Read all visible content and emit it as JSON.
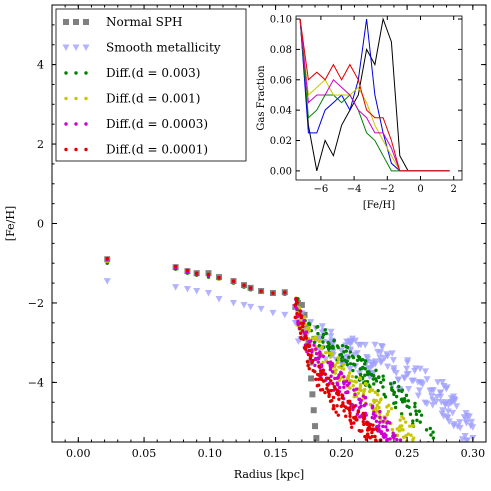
{
  "chart_data": [
    {
      "type": "scatter",
      "title": "",
      "xlabel": "Radius [kpc]",
      "ylabel": "[Fe/H]",
      "xlim": [
        -0.02,
        0.31
      ],
      "ylim": [
        -5.5,
        5.5
      ],
      "xticks": [
        "0.00",
        "0.05",
        "0.10",
        "0.15",
        "0.20",
        "0.25",
        "0.30"
      ],
      "xtick_values": [
        0.0,
        0.05,
        0.1,
        0.15,
        0.2,
        0.25,
        0.3
      ],
      "yticks": [
        "−4",
        "−2",
        "0",
        "2",
        "4"
      ],
      "ytick_values": [
        -4,
        -2,
        0,
        2,
        4
      ],
      "grid": false,
      "legend_position": "top-left",
      "series": [
        {
          "name": "Normal SPH",
          "marker": "square",
          "color": "#808080",
          "points": [
            [
              0.022,
              -0.9
            ],
            [
              0.074,
              -1.1
            ],
            [
              0.083,
              -1.2
            ],
            [
              0.09,
              -1.25
            ],
            [
              0.099,
              -1.25
            ],
            [
              0.107,
              -1.35
            ],
            [
              0.118,
              -1.45
            ],
            [
              0.126,
              -1.55
            ],
            [
              0.131,
              -1.62
            ],
            [
              0.139,
              -1.7
            ],
            [
              0.148,
              -1.75
            ],
            [
              0.157,
              -1.73
            ],
            [
              0.165,
              -2.1
            ],
            [
              0.167,
              -2.0
            ],
            [
              0.17,
              -2.05
            ],
            [
              0.172,
              -2.3
            ],
            [
              0.174,
              -2.6
            ],
            [
              0.175,
              -3.0
            ],
            [
              0.176,
              -3.5
            ],
            [
              0.177,
              -3.9
            ],
            [
              0.178,
              -4.3
            ],
            [
              0.179,
              -4.7
            ],
            [
              0.18,
              -5.1
            ],
            [
              0.181,
              -5.4
            ]
          ]
        },
        {
          "name": "Smooth metallicity",
          "marker": "triangle-down",
          "color": "#a0a0ff",
          "points": [
            [
              0.022,
              -1.45
            ],
            [
              0.074,
              -1.6
            ],
            [
              0.083,
              -1.65
            ],
            [
              0.09,
              -1.7
            ],
            [
              0.099,
              -1.75
            ],
            [
              0.107,
              -1.9
            ],
            [
              0.118,
              -2.0
            ],
            [
              0.126,
              -2.05
            ],
            [
              0.131,
              -2.1
            ],
            [
              0.139,
              -2.15
            ],
            [
              0.148,
              -2.25
            ],
            [
              0.157,
              -2.3
            ],
            [
              0.165,
              -2.5
            ],
            [
              0.17,
              -2.7
            ],
            [
              0.18,
              -2.9
            ],
            [
              0.19,
              -3.0
            ],
            [
              0.2,
              -3.2
            ],
            [
              0.21,
              -3.3
            ],
            [
              0.22,
              -3.4
            ],
            [
              0.23,
              -3.5
            ],
            [
              0.24,
              -3.7
            ],
            [
              0.25,
              -3.8
            ],
            [
              0.26,
              -4.0
            ],
            [
              0.27,
              -4.2
            ],
            [
              0.28,
              -4.5
            ],
            [
              0.29,
              -5.0
            ],
            [
              0.3,
              -5.4
            ]
          ]
        },
        {
          "name": "Diff.(d = 0.003)",
          "marker": "dot",
          "color": "#008000",
          "points": [
            [
              0.022,
              -1.0
            ],
            [
              0.074,
              -1.15
            ],
            [
              0.083,
              -1.25
            ],
            [
              0.09,
              -1.3
            ],
            [
              0.099,
              -1.35
            ],
            [
              0.107,
              -1.4
            ],
            [
              0.118,
              -1.5
            ],
            [
              0.126,
              -1.6
            ],
            [
              0.131,
              -1.67
            ],
            [
              0.139,
              -1.73
            ],
            [
              0.148,
              -1.78
            ],
            [
              0.157,
              -1.78
            ],
            [
              0.165,
              -2.05
            ],
            [
              0.175,
              -2.7
            ],
            [
              0.19,
              -3.0
            ],
            [
              0.2,
              -3.3
            ],
            [
              0.21,
              -3.55
            ],
            [
              0.22,
              -3.8
            ],
            [
              0.23,
              -4.0
            ],
            [
              0.24,
              -4.3
            ],
            [
              0.25,
              -4.6
            ],
            [
              0.26,
              -5.0
            ],
            [
              0.27,
              -5.4
            ]
          ]
        },
        {
          "name": "Diff.(d = 0.001)",
          "marker": "dot",
          "color": "#c8c800",
          "points": [
            [
              0.022,
              -0.95
            ],
            [
              0.074,
              -1.1
            ],
            [
              0.083,
              -1.2
            ],
            [
              0.09,
              -1.27
            ],
            [
              0.099,
              -1.3
            ],
            [
              0.107,
              -1.4
            ],
            [
              0.118,
              -1.48
            ],
            [
              0.126,
              -1.58
            ],
            [
              0.131,
              -1.65
            ],
            [
              0.139,
              -1.72
            ],
            [
              0.148,
              -1.77
            ],
            [
              0.157,
              -1.76
            ],
            [
              0.165,
              -2.1
            ],
            [
              0.175,
              -2.9
            ],
            [
              0.185,
              -3.3
            ],
            [
              0.195,
              -3.6
            ],
            [
              0.205,
              -3.95
            ],
            [
              0.215,
              -4.2
            ],
            [
              0.225,
              -4.5
            ],
            [
              0.235,
              -4.8
            ],
            [
              0.245,
              -5.1
            ],
            [
              0.255,
              -5.4
            ]
          ]
        },
        {
          "name": "Diff.(d = 0.0003)",
          "marker": "dot",
          "color": "#cc00cc",
          "points": [
            [
              0.022,
              -0.92
            ],
            [
              0.074,
              -1.12
            ],
            [
              0.083,
              -1.22
            ],
            [
              0.09,
              -1.28
            ],
            [
              0.099,
              -1.32
            ],
            [
              0.107,
              -1.38
            ],
            [
              0.118,
              -1.47
            ],
            [
              0.126,
              -1.57
            ],
            [
              0.131,
              -1.64
            ],
            [
              0.139,
              -1.71
            ],
            [
              0.148,
              -1.76
            ],
            [
              0.157,
              -1.75
            ],
            [
              0.165,
              -2.1
            ],
            [
              0.175,
              -3.1
            ],
            [
              0.185,
              -3.6
            ],
            [
              0.195,
              -3.9
            ],
            [
              0.205,
              -4.25
            ],
            [
              0.215,
              -4.6
            ],
            [
              0.225,
              -4.9
            ],
            [
              0.235,
              -5.2
            ],
            [
              0.245,
              -5.45
            ]
          ]
        },
        {
          "name": "Diff.(d = 0.0001)",
          "marker": "dot",
          "color": "#e00000",
          "points": [
            [
              0.022,
              -0.88
            ],
            [
              0.074,
              -1.08
            ],
            [
              0.083,
              -1.18
            ],
            [
              0.09,
              -1.25
            ],
            [
              0.099,
              -1.28
            ],
            [
              0.107,
              -1.36
            ],
            [
              0.118,
              -1.45
            ],
            [
              0.126,
              -1.55
            ],
            [
              0.131,
              -1.62
            ],
            [
              0.139,
              -1.7
            ],
            [
              0.148,
              -1.75
            ],
            [
              0.157,
              -1.73
            ],
            [
              0.165,
              -2.05
            ],
            [
              0.175,
              -3.3
            ],
            [
              0.182,
              -3.8
            ],
            [
              0.19,
              -4.2
            ],
            [
              0.2,
              -4.6
            ],
            [
              0.21,
              -4.9
            ],
            [
              0.22,
              -5.2
            ],
            [
              0.23,
              -5.45
            ]
          ]
        }
      ]
    },
    {
      "type": "line",
      "title": "",
      "xlabel": "[Fe/H]",
      "ylabel": "Gas Fraction",
      "xlim": [
        -7.5,
        2.5
      ],
      "ylim": [
        -0.006,
        0.102
      ],
      "xticks": [
        "−6",
        "−4",
        "−2",
        "0",
        "2"
      ],
      "xtick_values": [
        -6,
        -4,
        -2,
        0,
        2
      ],
      "yticks": [
        "0.00",
        "0.02",
        "0.04",
        "0.06",
        "0.08",
        "0.10"
      ],
      "ytick_values": [
        0.0,
        0.02,
        0.04,
        0.06,
        0.08,
        0.1
      ],
      "x": [
        -7.25,
        -6.75,
        -6.25,
        -5.75,
        -5.25,
        -4.75,
        -4.25,
        -3.75,
        -3.25,
        -2.75,
        -2.25,
        -1.75,
        -1.25,
        -0.75,
        -0.25,
        0.25,
        0.75,
        1.25,
        1.75
      ],
      "series": [
        {
          "name": "",
          "color": "#000000",
          "values": [
            0.1,
            0.03,
            0.0,
            0.02,
            0.01,
            0.03,
            0.04,
            0.05,
            0.08,
            0.07,
            0.1,
            0.085,
            0.01,
            0.0,
            0.0,
            0.0,
            0.0,
            0.0,
            0.0
          ]
        },
        {
          "name": "",
          "color": "#0000dd",
          "values": [
            0.1,
            0.025,
            0.025,
            0.04,
            0.045,
            0.05,
            0.04,
            0.06,
            0.1,
            0.05,
            0.025,
            0.005,
            0.0,
            0.0,
            0.0,
            0.0,
            0.0,
            0.0,
            0.0
          ]
        },
        {
          "name": "",
          "color": "#008000",
          "values": [
            0.1,
            0.035,
            0.04,
            0.05,
            0.05,
            0.045,
            0.05,
            0.04,
            0.025,
            0.02,
            0.01,
            0.0,
            0.0,
            0.0,
            0.0,
            0.0,
            0.0,
            0.0,
            0.0
          ]
        },
        {
          "name": "",
          "color": "#c8c800",
          "values": [
            0.1,
            0.05,
            0.055,
            0.06,
            0.05,
            0.05,
            0.05,
            0.055,
            0.045,
            0.03,
            0.02,
            0.01,
            0.0,
            0.0,
            0.0,
            0.0,
            0.0,
            0.0,
            0.0
          ]
        },
        {
          "name": "",
          "color": "#cc00cc",
          "values": [
            0.1,
            0.045,
            0.05,
            0.05,
            0.06,
            0.055,
            0.05,
            0.04,
            0.035,
            0.025,
            0.025,
            0.015,
            0.0,
            0.0,
            0.0,
            0.0,
            0.0,
            0.0,
            0.0
          ]
        },
        {
          "name": "",
          "color": "#e00000",
          "values": [
            0.1,
            0.06,
            0.065,
            0.06,
            0.07,
            0.06,
            0.07,
            0.06,
            0.04,
            0.035,
            0.035,
            0.02,
            0.0,
            0.0,
            0.0,
            0.0,
            0.0,
            0.0,
            0.0
          ]
        }
      ]
    }
  ]
}
